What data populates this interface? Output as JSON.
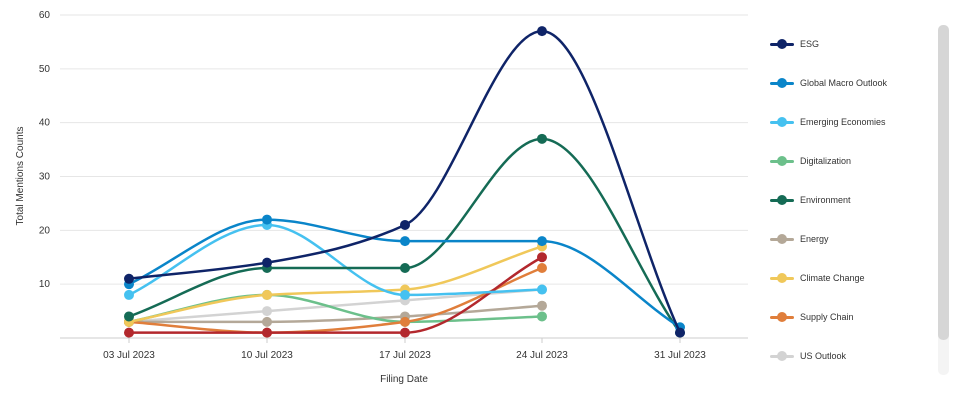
{
  "chart_data": {
    "type": "line",
    "xlabel": "Filing Date",
    "ylabel": "Total Mentions Counts",
    "categories": [
      "03 Jul 2023",
      "10 Jul 2023",
      "17 Jul 2023",
      "24 Jul 2023",
      "31 Jul 2023"
    ],
    "ylim": [
      0,
      60
    ],
    "yticks": [
      10,
      20,
      30,
      40,
      50,
      60
    ],
    "grid": true,
    "legend_position": "right",
    "series": [
      {
        "name": "ESG",
        "color": "#0f2468",
        "values": [
          11,
          14,
          21,
          57,
          1
        ]
      },
      {
        "name": "Global Macro Outlook",
        "color": "#0a85c9",
        "values": [
          10,
          22,
          18,
          18,
          2
        ]
      },
      {
        "name": "Emerging Economies",
        "color": "#45c1f0",
        "values": [
          8,
          21,
          8,
          9,
          null
        ]
      },
      {
        "name": "Digitalization",
        "color": "#6cc08b",
        "values": [
          3,
          8,
          3,
          4,
          null
        ]
      },
      {
        "name": "Environment",
        "color": "#156b55",
        "values": [
          4,
          13,
          13,
          37,
          1
        ]
      },
      {
        "name": "Energy",
        "color": "#b4a898",
        "values": [
          3,
          3,
          4,
          6,
          null
        ]
      },
      {
        "name": "Climate Change",
        "color": "#f0c85a",
        "values": [
          3,
          8,
          9,
          17,
          null
        ]
      },
      {
        "name": "Supply Chain",
        "color": "#e07e3b",
        "values": [
          3,
          1,
          3,
          13,
          null
        ]
      },
      {
        "name": "US Outlook",
        "color": "#d3d3d3",
        "values": [
          3,
          5,
          7,
          9,
          null
        ]
      },
      {
        "name": "",
        "color": "#b3282d",
        "values": [
          1,
          1,
          1,
          15,
          null
        ]
      }
    ]
  }
}
